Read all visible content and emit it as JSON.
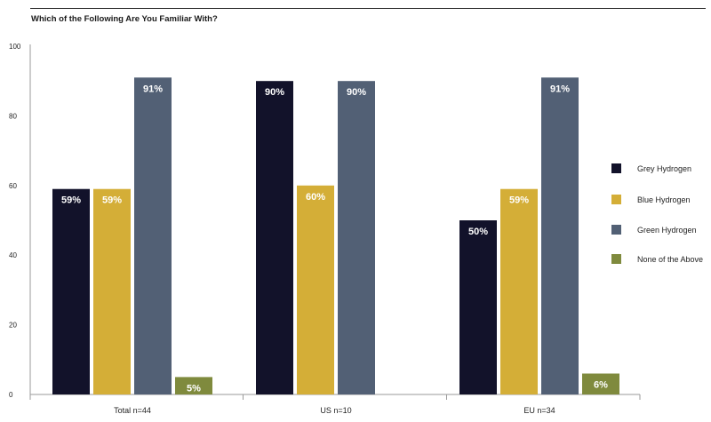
{
  "chart_data": {
    "type": "bar",
    "title": "Which of the Following Are You Familiar With?",
    "categories": [
      "Total n=44",
      "US n=10",
      "EU n=34"
    ],
    "series": [
      {
        "name": "Grey Hydrogen",
        "color": "#12122a",
        "values": [
          59,
          90,
          50
        ],
        "labels": [
          "59%",
          "90%",
          "50%"
        ]
      },
      {
        "name": "Blue Hydrogen",
        "color": "#d4ae37",
        "values": [
          59,
          60,
          59
        ],
        "labels": [
          "59%",
          "60%",
          "59%"
        ]
      },
      {
        "name": "Green Hydrogen",
        "color": "#526075",
        "values": [
          91,
          90,
          91
        ],
        "labels": [
          "91%",
          "90%",
          "91%"
        ]
      },
      {
        "name": "None of the Above",
        "color": "#7f8a3d",
        "values": [
          5,
          0,
          6
        ],
        "labels": [
          "5%",
          "",
          "6%"
        ]
      }
    ],
    "yticks": [
      "0",
      "20",
      "40",
      "60",
      "80",
      "100"
    ],
    "ylim": [
      0,
      100
    ],
    "xlabel": "",
    "ylabel": "",
    "grid": false,
    "legend_position": "right"
  }
}
